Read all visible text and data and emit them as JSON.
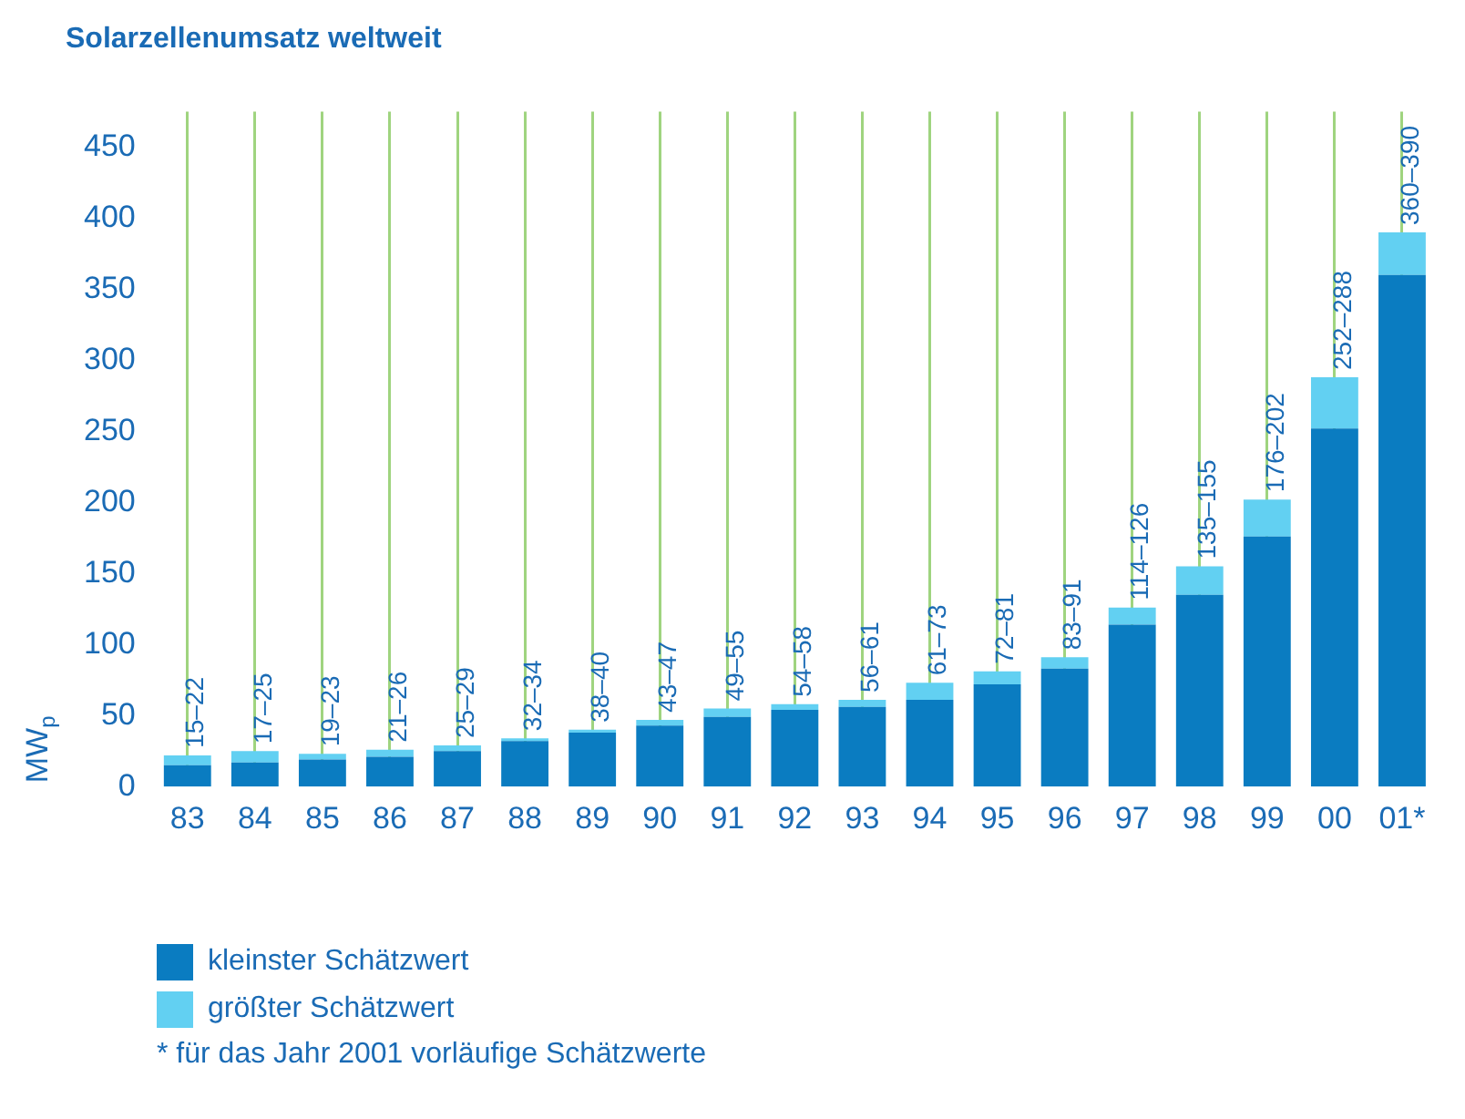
{
  "chart_data": {
    "type": "bar",
    "title": "Solarzellenumsatz weltweit",
    "ylabel": "MW$_{p}$",
    "categories": [
      "83",
      "84",
      "85",
      "86",
      "87",
      "88",
      "89",
      "90",
      "91",
      "92",
      "93",
      "94",
      "95",
      "96",
      "97",
      "98",
      "99",
      "00",
      "01*"
    ],
    "stacked": true,
    "series": [
      {
        "name": "kleinster Schätzwert",
        "color": "#0a7cc1",
        "values": [
          15,
          17,
          19,
          21,
          25,
          32,
          38,
          43,
          49,
          54,
          56,
          61,
          72,
          83,
          114,
          135,
          176,
          252,
          360
        ]
      },
      {
        "name": "größter Schätzwert",
        "color": "#62d0f2",
        "values": [
          7,
          8,
          4,
          5,
          4,
          2,
          2,
          4,
          6,
          4,
          5,
          12,
          9,
          8,
          12,
          20,
          26,
          36,
          30
        ],
        "value_labels": [
          "15–22",
          "17–25",
          "19–23",
          "21–26",
          "25–29",
          "32–34",
          "38–40",
          "43–47",
          "49–55",
          "54–58",
          "56–61",
          "61–73",
          "72–81",
          "83–91",
          "114–126",
          "135–155",
          "176–202",
          "252–288",
          "360–390"
        ]
      }
    ],
    "ylim": [
      0,
      475
    ],
    "yticks": [
      0,
      50,
      100,
      150,
      200,
      250,
      300,
      350,
      400,
      450
    ],
    "grid": "x",
    "legend": "bottom left",
    "annotations": [
      "* für das Jahr 2001 vorläufige Schätzwerte"
    ]
  }
}
